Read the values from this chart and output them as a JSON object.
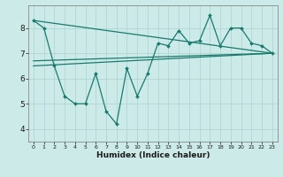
{
  "xlabel": "Humidex (Indice chaleur)",
  "ylabel": "",
  "bg_color": "#cceae8",
  "line_color": "#1a7a6e",
  "grid_color": "#aad4d0",
  "xlim": [
    -0.5,
    23.5
  ],
  "ylim": [
    3.5,
    8.9
  ],
  "yticks": [
    4,
    5,
    6,
    7,
    8
  ],
  "xticks": [
    0,
    1,
    2,
    3,
    4,
    5,
    6,
    7,
    8,
    9,
    10,
    11,
    12,
    13,
    14,
    15,
    16,
    17,
    18,
    19,
    20,
    21,
    22,
    23
  ],
  "series1_x": [
    0,
    1,
    2,
    3,
    4,
    5,
    6,
    7,
    8,
    9,
    10,
    11,
    12,
    13,
    14,
    15,
    16,
    17,
    18,
    19,
    20,
    21,
    22,
    23
  ],
  "series1_y": [
    8.3,
    8.0,
    6.5,
    5.3,
    5.0,
    5.0,
    6.2,
    4.7,
    4.2,
    6.4,
    5.3,
    6.2,
    7.4,
    7.3,
    7.9,
    7.4,
    7.5,
    8.5,
    7.3,
    8.0,
    8.0,
    7.4,
    7.3,
    7.0
  ],
  "line1_x": [
    0,
    23
  ],
  "line1_y": [
    8.3,
    7.0
  ],
  "line2_x": [
    0,
    23
  ],
  "line2_y": [
    6.5,
    7.0
  ],
  "line3_x": [
    0,
    23
  ],
  "line3_y": [
    6.7,
    7.0
  ]
}
